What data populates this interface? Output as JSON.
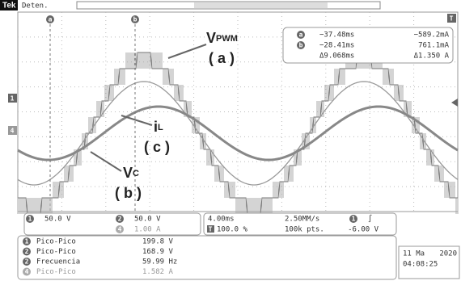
{
  "header": {
    "brand": "Tek",
    "status": "Deten."
  },
  "cursors": {
    "a_marker": "a",
    "b_marker": "b",
    "a_time": "−37.48ms",
    "a_value": "−589.2mA",
    "b_time": "−28.41ms",
    "b_value": "761.1mA",
    "delta_time": "Δ9.068ms",
    "delta_value": "Δ1.350 A"
  },
  "side_markers": {
    "channel_1": "1",
    "channel_4": "4",
    "trigger": "T"
  },
  "annotations": [
    {
      "main": "V",
      "sub": "PWM",
      "tag": "( a )"
    },
    {
      "main": "i",
      "sub": "L",
      "tag": "( c )"
    },
    {
      "main": "V",
      "sub": "C",
      "tag": "( b )"
    }
  ],
  "channels": [
    {
      "id": "1",
      "scale": "50.0 V"
    },
    {
      "id": "2",
      "scale": "50.0 V"
    },
    {
      "id": "4",
      "scale": "1.00 A"
    }
  ],
  "timebase": {
    "horizontal": "4.00ms",
    "sample_rate": "2.50MM/s",
    "trigger_channel": "1",
    "trigger_slope": "∫",
    "trigger_marker": "T",
    "trigger_pos": "100.0 %",
    "record": "100k pts.",
    "trigger_level": "-6.00 V"
  },
  "measurements": [
    {
      "channel": "1",
      "name": "Pico-Pico",
      "value": "199.8 V"
    },
    {
      "channel": "2",
      "name": "Pico-Pico",
      "value": "168.9 V"
    },
    {
      "channel": "2",
      "name": "Frecuencia",
      "value": "59.99 Hz"
    },
    {
      "channel": "4",
      "name": "Pico-Pico",
      "value": "1.582 A"
    }
  ],
  "datetime": {
    "date": "11 Ma",
    "year": "2020",
    "time": "04:08:25"
  }
}
